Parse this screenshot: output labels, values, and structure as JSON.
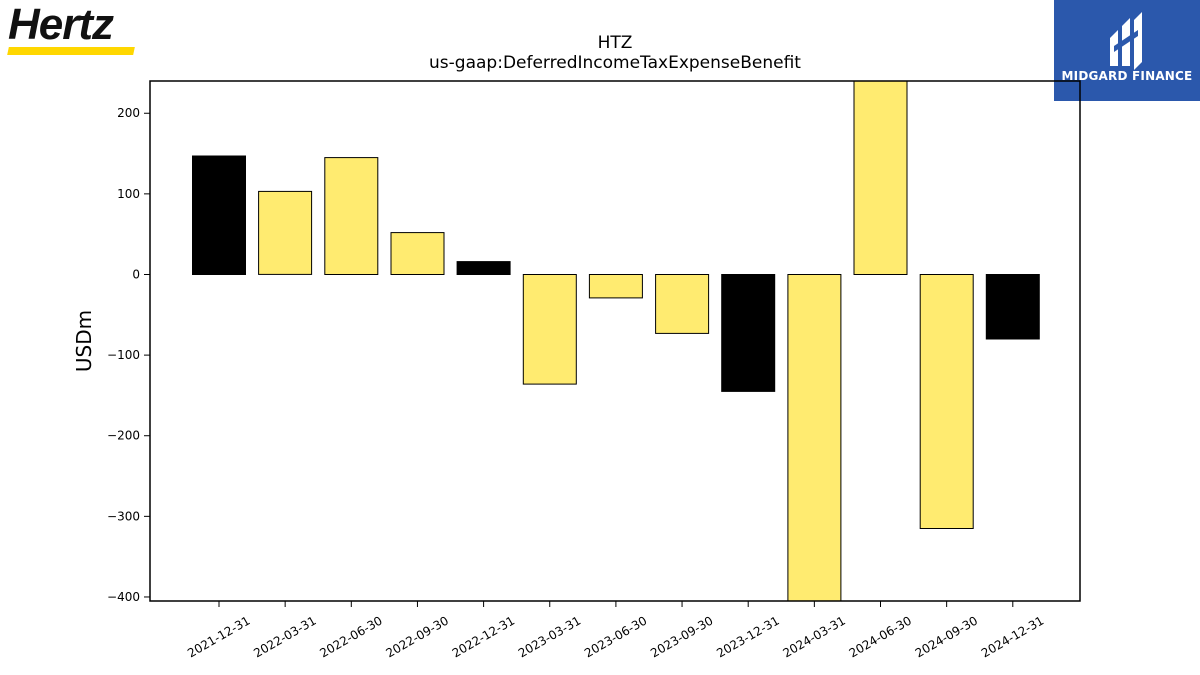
{
  "logos": {
    "left_brand": "Hertz",
    "right_brand": "MIDGARD FINANCE"
  },
  "colors": {
    "bar_yellow": "#ffeb70",
    "bar_black": "#000000",
    "hertz_yellow": "#ffd700",
    "midgard_blue": "#2b58ac"
  },
  "chart_data": {
    "type": "bar",
    "title": "HTZ",
    "subtitle": "us-gaap:DeferredIncomeTaxExpenseBenefit",
    "xlabel": "",
    "ylabel": "USDm",
    "ylim": [
      -405,
      240
    ],
    "yticks": [
      200,
      100,
      0,
      -100,
      -200,
      -300,
      -400
    ],
    "ytick_labels": [
      "200",
      "100",
      "0",
      "−100",
      "−200",
      "−300",
      "−400"
    ],
    "grid": false,
    "categories": [
      "2021-12-31",
      "2022-03-31",
      "2022-06-30",
      "2022-09-30",
      "2022-12-31",
      "2023-03-31",
      "2023-06-30",
      "2023-09-30",
      "2023-12-31",
      "2024-03-31",
      "2024-06-30",
      "2024-09-30",
      "2024-12-31"
    ],
    "values": [
      147,
      103,
      145,
      52,
      16,
      -136,
      -29,
      -73,
      -145,
      -405,
      240,
      -315,
      -80
    ],
    "bar_colors": [
      "black",
      "yellow",
      "yellow",
      "yellow",
      "black",
      "yellow",
      "yellow",
      "yellow",
      "black",
      "yellow",
      "yellow",
      "yellow",
      "black"
    ]
  }
}
